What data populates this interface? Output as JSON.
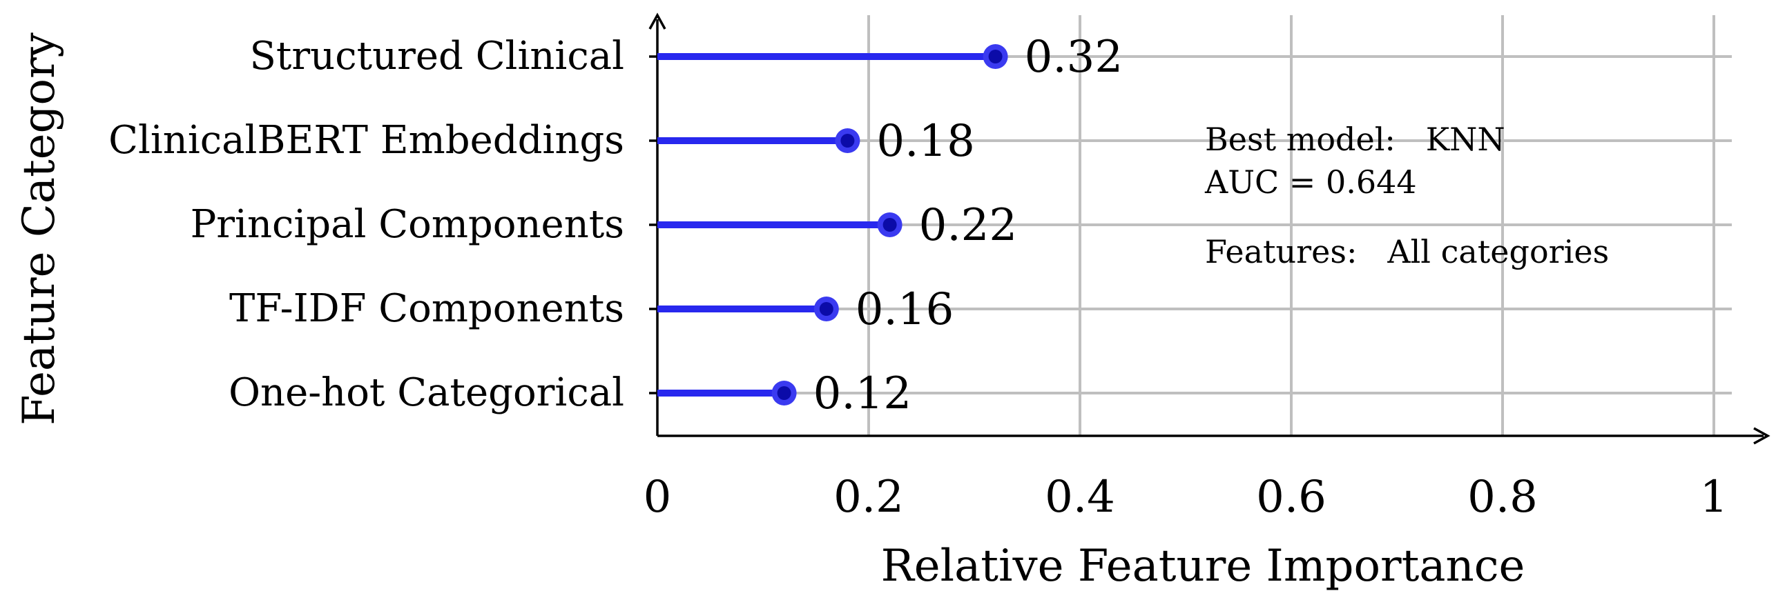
{
  "chart_data": {
    "type": "lollipop",
    "orientation": "horizontal",
    "categories": [
      "Structured Clinical",
      "ClinicalBERT Embeddings",
      "Principal Components",
      "TF-IDF Components",
      "One-hot Categorical"
    ],
    "values": [
      0.32,
      0.18,
      0.22,
      0.16,
      0.12
    ],
    "value_labels": [
      "0.32",
      "0.18",
      "0.22",
      "0.16",
      "0.12"
    ],
    "xlabel": "Relative Feature Importance",
    "ylabel": "Feature Category",
    "xlim": [
      0,
      1
    ],
    "x_ticks": [
      0,
      0.2,
      0.4,
      0.6,
      0.8,
      1
    ],
    "x_tick_labels": [
      "0",
      "0.2",
      "0.4",
      "0.6",
      "0.8",
      "1"
    ],
    "grid": true,
    "colors": {
      "stem": "#2828ee",
      "marker": "#3a3af0",
      "marker_center": "#0b0ba8",
      "grid": "#bfbfbf"
    },
    "annotation": {
      "lines": [
        "Best model:   KNN",
        "AUC = 0.644",
        "Features:   All categories"
      ]
    }
  }
}
